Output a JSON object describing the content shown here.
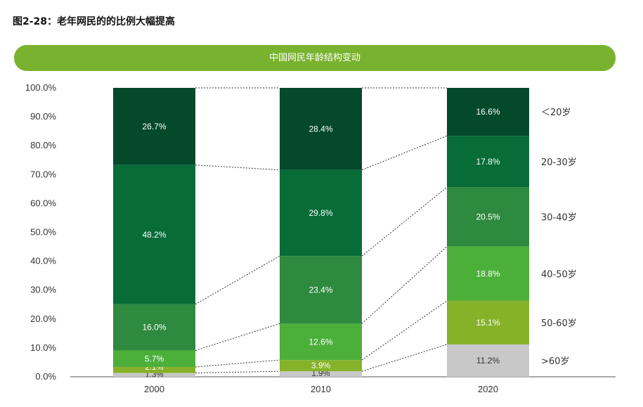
{
  "figure_title": "图2-28：老年网民的的比例大幅提高",
  "chart_data": {
    "type": "bar",
    "stacked": true,
    "title": "中国网民年龄结构变动",
    "categories": [
      "2000",
      "2010",
      "2020"
    ],
    "ylim": [
      0,
      100
    ],
    "yticks": [
      "0.0%",
      "10.0%",
      "20.0%",
      "30.0%",
      "40.0%",
      "50.0%",
      "60.0%",
      "70.0%",
      "80.0%",
      "90.0%",
      "100.0%"
    ],
    "series": [
      {
        "name": ">60岁",
        "values": [
          1.3,
          1.9,
          11.2
        ],
        "labels": [
          "1.3%",
          "1.9%",
          "11.2%"
        ],
        "color": "#c8c8c8"
      },
      {
        "name": "50-60岁",
        "values": [
          2.1,
          3.9,
          15.1
        ],
        "labels": [
          "2.1%",
          "3.9%",
          "15.1%"
        ],
        "color": "#86b22a"
      },
      {
        "name": "40-50岁",
        "values": [
          5.7,
          12.6,
          18.8
        ],
        "labels": [
          "5.7%",
          "12.6%",
          "18.8%"
        ],
        "color": "#4caf3a"
      },
      {
        "name": "30-40岁",
        "values": [
          16.0,
          23.4,
          20.5
        ],
        "labels": [
          "16.0%",
          "23.4%",
          "20.5%"
        ],
        "color": "#2e8a3f"
      },
      {
        "name": "20-30岁",
        "values": [
          48.2,
          29.8,
          17.8
        ],
        "labels": [
          "48.2%",
          "29.8%",
          "17.8%"
        ],
        "color": "#076c38"
      },
      {
        "name": "＜20岁",
        "values": [
          26.7,
          28.4,
          16.6
        ],
        "labels": [
          "26.7%",
          "28.4%",
          "16.6%"
        ],
        "color": "#03492a"
      }
    ],
    "connector_lines": "dotted",
    "legend": "right",
    "grid": false
  }
}
